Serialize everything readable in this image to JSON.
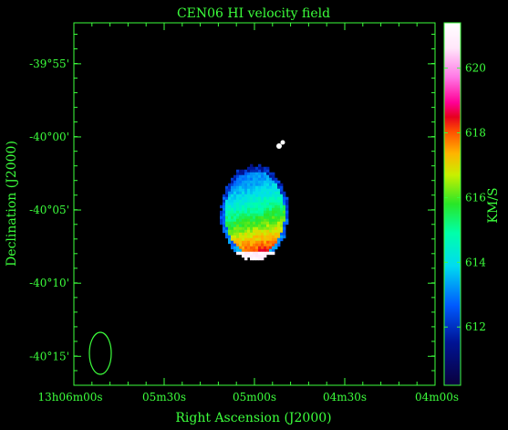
{
  "chart_data": {
    "type": "heatmap",
    "title": "CEN06   HI velocity field",
    "xlabel": "Right Ascension (J2000)",
    "ylabel": "Declination (J2000)",
    "colorbar_label": "KM/S",
    "colorbar_range": [
      610.2,
      621.4
    ],
    "colorbar_ticks": [
      {
        "value": 612,
        "label": "612"
      },
      {
        "value": 614,
        "label": "614"
      },
      {
        "value": 616,
        "label": "616"
      },
      {
        "value": 618,
        "label": "618"
      },
      {
        "value": 620,
        "label": "620"
      }
    ],
    "x_ticks": [
      {
        "pos": 0.0,
        "label": "13h06m00s"
      },
      {
        "pos": 0.25,
        "label": "05m30s"
      },
      {
        "pos": 0.5,
        "label": "05m00s"
      },
      {
        "pos": 0.75,
        "label": "04m30s"
      },
      {
        "pos": 1.0,
        "label": "04m00s"
      }
    ],
    "y_ticks": [
      {
        "value": -39.9167,
        "label": "-39°55'"
      },
      {
        "value": -40.0,
        "label": "-40°00'"
      },
      {
        "value": -40.0833,
        "label": "-40°05'"
      },
      {
        "value": -40.1667,
        "label": "-40°10'"
      },
      {
        "value": -40.25,
        "label": "-40°15'"
      }
    ],
    "dec_range": [
      -40.283,
      -39.87
    ],
    "source": {
      "center_dec": -40.083,
      "velocity_top": 612.8,
      "velocity_bottom": 619.0,
      "edge_velocity": 611.8
    },
    "beam_ellipse": true,
    "grid": false,
    "colors": {
      "axes": "#3cff3c",
      "background": "#000000"
    }
  }
}
